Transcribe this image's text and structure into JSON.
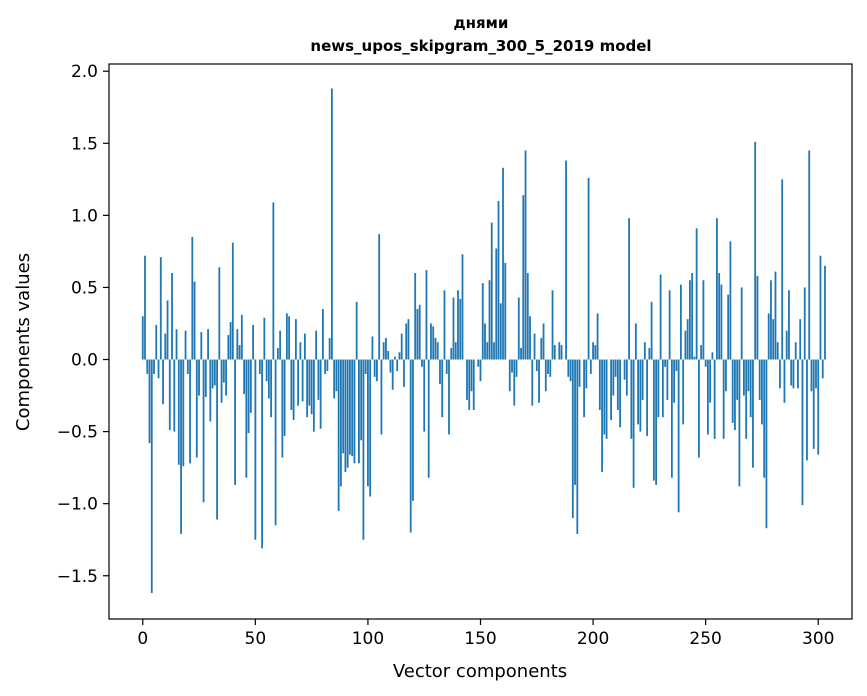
{
  "chart_data": {
    "type": "bar",
    "title_line1": "днями",
    "title_line2": "news_upos_skipgram_300_5_2019 model",
    "xlabel": "Vector components",
    "ylabel": "Components values",
    "xlim": [
      -15,
      315
    ],
    "ylim": [
      -1.8,
      2.05
    ],
    "xticks": [
      0,
      50,
      100,
      150,
      200,
      250,
      300
    ],
    "xtick_labels": [
      "0",
      "50",
      "100",
      "150",
      "200",
      "250",
      "300"
    ],
    "yticks": [
      -1.5,
      -1.0,
      -0.5,
      0.0,
      0.5,
      1.0,
      1.5,
      2.0
    ],
    "ytick_labels": [
      "−1.5",
      "−1.0",
      "−0.5",
      "0.0",
      "0.5",
      "1.0",
      "1.5",
      "2.0"
    ],
    "bar_color": "#1f77b4",
    "values": [
      0.3,
      0.72,
      -0.1,
      -0.58,
      -1.62,
      -0.1,
      0.24,
      -0.13,
      0.71,
      -0.31,
      0.18,
      0.41,
      -0.49,
      0.6,
      -0.5,
      0.21,
      -0.73,
      -1.21,
      -0.74,
      0.2,
      -0.1,
      -0.72,
      0.85,
      0.54,
      -0.68,
      -0.25,
      0.19,
      -0.99,
      -0.26,
      0.21,
      -0.43,
      -0.2,
      -0.18,
      -1.11,
      0.64,
      -0.3,
      -0.16,
      -0.25,
      0.17,
      0.26,
      0.81,
      -0.87,
      0.21,
      0.1,
      0.31,
      -0.24,
      -0.82,
      -0.51,
      -0.37,
      0.24,
      -1.25,
      0.0,
      -0.1,
      -1.31,
      0.29,
      -0.15,
      -0.27,
      -0.4,
      1.09,
      -1.15,
      0.08,
      0.2,
      -0.68,
      -0.53,
      0.32,
      0.3,
      -0.35,
      -0.42,
      0.28,
      -0.32,
      0.12,
      -0.29,
      0.18,
      -0.4,
      -0.32,
      -0.38,
      -0.5,
      0.2,
      -0.28,
      -0.48,
      0.35,
      -0.1,
      -0.08,
      0.15,
      1.88,
      -0.27,
      -0.22,
      -1.05,
      -0.88,
      -0.65,
      -0.78,
      -0.75,
      -0.66,
      -0.67,
      -0.72,
      0.4,
      -0.72,
      -0.56,
      -1.25,
      -0.1,
      -0.88,
      -0.95,
      0.16,
      -0.12,
      -0.15,
      0.87,
      -0.52,
      0.12,
      0.15,
      0.06,
      -0.09,
      -0.21,
      0.02,
      -0.08,
      0.05,
      0.18,
      -0.19,
      0.25,
      0.28,
      -1.2,
      -0.98,
      0.6,
      0.35,
      0.38,
      -0.05,
      -0.5,
      0.62,
      -0.82,
      0.25,
      0.23,
      0.15,
      0.12,
      -0.17,
      -0.4,
      0.48,
      -0.1,
      -0.52,
      0.08,
      0.43,
      0.12,
      0.48,
      0.42,
      0.73,
      0.0,
      -0.28,
      -0.35,
      -0.22,
      -0.35,
      0.0,
      -0.05,
      -0.15,
      0.53,
      0.25,
      0.12,
      0.55,
      0.95,
      0.12,
      0.77,
      1.1,
      0.39,
      1.33,
      0.67,
      0.0,
      -0.22,
      -0.09,
      -0.32,
      -0.12,
      0.43,
      0.08,
      1.14,
      1.45,
      0.6,
      0.3,
      -0.32,
      0.18,
      -0.08,
      -0.3,
      0.15,
      0.25,
      -0.22,
      -0.1,
      -0.12,
      0.48,
      0.1,
      0.0,
      0.12,
      0.1,
      0.0,
      1.38,
      -0.12,
      -0.15,
      -1.1,
      -0.87,
      -1.21,
      -0.19,
      0.0,
      -0.4,
      -0.2,
      1.26,
      -0.1,
      0.12,
      0.1,
      0.32,
      -0.35,
      -0.78,
      -0.52,
      -0.55,
      0.0,
      -0.42,
      -0.25,
      -0.12,
      -0.35,
      -0.47,
      0.0,
      -0.14,
      -0.25,
      0.98,
      -0.55,
      -0.89,
      0.25,
      -0.45,
      -0.5,
      -0.28,
      0.12,
      -0.53,
      0.08,
      0.4,
      -0.84,
      -0.87,
      -0.4,
      0.59,
      -0.4,
      -0.05,
      -0.28,
      0.48,
      -0.82,
      -0.3,
      -0.08,
      -1.06,
      0.52,
      -0.45,
      0.2,
      0.28,
      0.55,
      0.6,
      0.02,
      0.91,
      -0.68,
      0.1,
      0.55,
      -0.05,
      -0.52,
      -0.3,
      0.05,
      -0.55,
      0.98,
      0.6,
      0.52,
      -0.55,
      -0.22,
      0.45,
      0.82,
      -0.44,
      -0.49,
      -0.28,
      -0.88,
      0.5,
      -0.25,
      -0.55,
      -0.22,
      -0.4,
      -0.75,
      1.51,
      0.58,
      -0.28,
      -0.45,
      -0.82,
      -1.17,
      0.32,
      0.55,
      0.28,
      0.61,
      0.12,
      -0.2,
      1.25,
      -0.3,
      0.2,
      0.48,
      -0.18,
      -0.2,
      0.12,
      -0.2,
      0.28,
      -1.01,
      0.5,
      -0.7,
      1.45,
      -0.22,
      -0.62,
      -0.2,
      -0.66,
      0.72,
      -0.13,
      0.65
    ]
  }
}
